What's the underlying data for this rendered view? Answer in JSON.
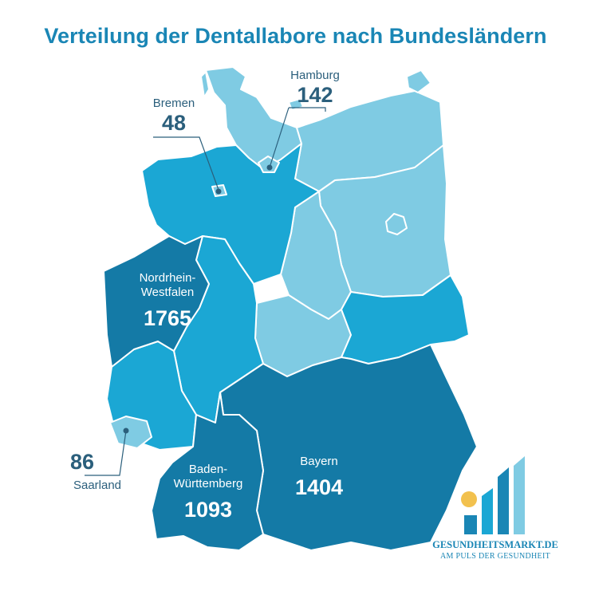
{
  "title": "Verteilung der Dentallabore nach Bundesländern",
  "colors": {
    "light": "#7fcbe3",
    "medium": "#1ba7d4",
    "dark": "#147aa6",
    "border": "#ffffff",
    "text": "#2b5f7c",
    "accent": "#1a86b5",
    "sun": "#f2c14e"
  },
  "states": [
    {
      "name": "Schleswig-Holstein",
      "shade": "light"
    },
    {
      "name": "Mecklenburg-Vorpommern",
      "shade": "light"
    },
    {
      "name": "Brandenburg",
      "shade": "light"
    },
    {
      "name": "Sachsen-Anhalt",
      "shade": "light"
    },
    {
      "name": "Thüringen",
      "shade": "light"
    },
    {
      "name": "Niedersachsen",
      "shade": "medium"
    },
    {
      "name": "Hessen",
      "shade": "medium"
    },
    {
      "name": "Rheinland-Pfalz",
      "shade": "medium"
    },
    {
      "name": "Sachsen",
      "shade": "medium"
    },
    {
      "name": "Berlin",
      "shade": "light"
    },
    {
      "name": "Nordrhein-Westfalen",
      "shade": "dark"
    },
    {
      "name": "Bayern",
      "shade": "dark"
    },
    {
      "name": "Baden-Württemberg",
      "shade": "dark"
    },
    {
      "name": "Saarland",
      "shade": "light"
    },
    {
      "name": "Hamburg",
      "shade": "light"
    },
    {
      "name": "Bremen",
      "shade": "light"
    }
  ],
  "labels": {
    "hamburg": {
      "name": "Hamburg",
      "value": "142"
    },
    "bremen": {
      "name": "Bremen",
      "value": "48"
    },
    "nrw": {
      "name_line1": "Nordrhein-",
      "name_line2": "Westfalen",
      "value": "1765"
    },
    "saarland": {
      "name": "Saarland",
      "value": "86"
    },
    "bw": {
      "name_line1": "Baden-",
      "name_line2": "Württemberg",
      "value": "1093"
    },
    "bayern": {
      "name": "Bayern",
      "value": "1404"
    }
  },
  "logo": {
    "line1": "GESUNDHEITSMARKT.DE",
    "line2": "AM PULS DER GESUNDHEIT"
  }
}
